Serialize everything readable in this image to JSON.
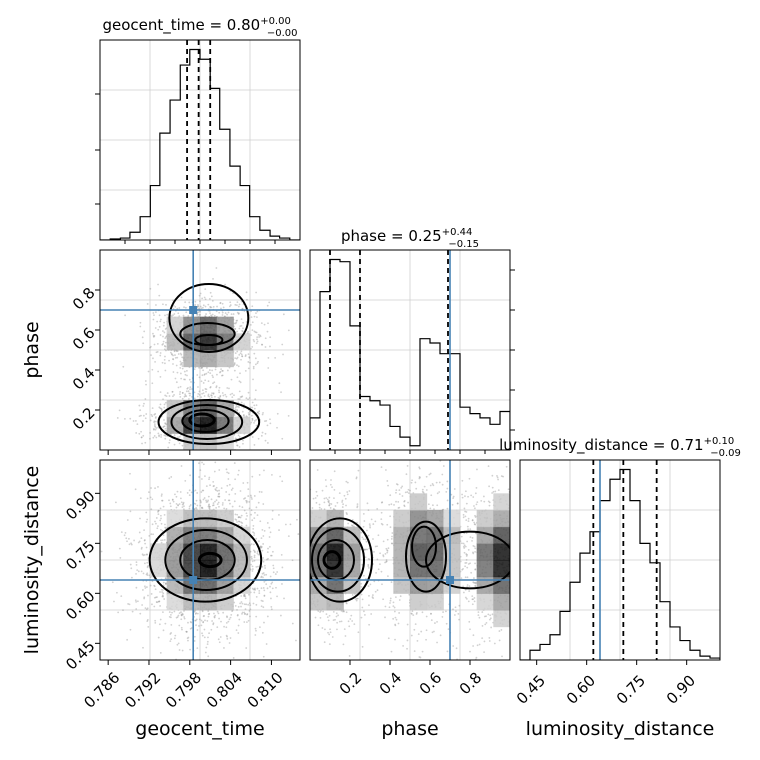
{
  "chart_data": {
    "type": "corner",
    "truth_color": "#4682b4",
    "panels": [
      {
        "id": "diag-geocent",
        "type": "histogram",
        "parameter": "geocent_time",
        "title": {
          "main": "geocent_time = 0.80",
          "sup": "+0.00",
          "sub": "−0.00"
        },
        "xlim": [
          0.7848,
          0.8142
        ],
        "bin_edges": [
          0.7848,
          0.7863,
          0.7878,
          0.7892,
          0.7907,
          0.7922,
          0.7936,
          0.7951,
          0.7966,
          0.798,
          0.7995,
          0.801,
          0.8024,
          0.8039,
          0.8054,
          0.8068,
          0.8083,
          0.8098,
          0.8112,
          0.8127,
          0.8142
        ],
        "counts": [
          0.0,
          0.005,
          0.01,
          0.04,
          0.12,
          0.28,
          0.55,
          0.72,
          0.9,
          0.98,
          0.93,
          0.78,
          0.57,
          0.38,
          0.28,
          0.12,
          0.05,
          0.02,
          0.01,
          0.0
        ],
        "quantiles": [
          0.7976,
          0.7993,
          0.801
        ]
      },
      {
        "id": "diag-phase",
        "type": "histogram",
        "parameter": "phase",
        "title": {
          "main": "phase = 0.25",
          "sup": "+0.44",
          "sub": "−0.15"
        },
        "xlim": [
          0.0,
          1.0
        ],
        "bin_edges": [
          0.0,
          0.05,
          0.1,
          0.15,
          0.2,
          0.25,
          0.3,
          0.35,
          0.4,
          0.45,
          0.5,
          0.55,
          0.6,
          0.65,
          0.7,
          0.75,
          0.8,
          0.85,
          0.9,
          0.95,
          1.0
        ],
        "counts": [
          0.15,
          0.74,
          0.89,
          0.88,
          0.58,
          0.25,
          0.23,
          0.21,
          0.11,
          0.06,
          0.02,
          0.52,
          0.5,
          0.45,
          0.45,
          0.2,
          0.17,
          0.15,
          0.12,
          0.18
        ],
        "quantiles": [
          0.1,
          0.25,
          0.69
        ],
        "truth": 0.7,
        "yticks": [
          0.1,
          0.3,
          0.5,
          0.7,
          0.9
        ]
      },
      {
        "id": "diag-lumdist",
        "type": "histogram",
        "parameter": "luminosity_distance",
        "title": {
          "main": "luminosity_distance = 0.71",
          "sup": "+0.10",
          "sub": "−0.09"
        },
        "xlim": [
          0.4,
          1.0
        ],
        "bin_edges": [
          0.4,
          0.43,
          0.46,
          0.49,
          0.52,
          0.55,
          0.58,
          0.61,
          0.64,
          0.67,
          0.7,
          0.73,
          0.76,
          0.79,
          0.82,
          0.85,
          0.88,
          0.91,
          0.94,
          0.97,
          1.0
        ],
        "counts": [
          0.0,
          0.05,
          0.08,
          0.13,
          0.25,
          0.4,
          0.55,
          0.66,
          0.82,
          0.93,
          0.98,
          0.82,
          0.6,
          0.5,
          0.3,
          0.17,
          0.1,
          0.05,
          0.02,
          0.01
        ],
        "quantiles": [
          0.62,
          0.71,
          0.81
        ],
        "truth": 0.64
      },
      {
        "id": "joint-geo-phase",
        "type": "density",
        "x": "geocent_time",
        "y": "phase",
        "xlim": [
          0.7848,
          0.8142
        ],
        "ylim": [
          0.0,
          1.0
        ],
        "truth": [
          0.7985,
          0.7
        ],
        "modes": [
          {
            "x": 0.8,
            "y": 0.15,
            "sx": 0.0025,
            "sy": 0.05
          },
          {
            "x": 0.8005,
            "y": 0.56,
            "sx": 0.0025,
            "sy": 0.06
          }
        ],
        "contours": [
          {
            "cx": 0.7998,
            "cy": 0.15,
            "rx": 0.0018,
            "ry": 0.03,
            "t": 3
          },
          {
            "cx": 0.8003,
            "cy": 0.145,
            "rx": 0.0034,
            "ry": 0.055,
            "t": 2
          },
          {
            "cx": 0.8005,
            "cy": 0.14,
            "rx": 0.0052,
            "ry": 0.085,
            "t": 2
          },
          {
            "cx": 0.8008,
            "cy": 0.14,
            "rx": 0.0074,
            "ry": 0.11,
            "t": 2
          },
          {
            "cx": 0.8008,
            "cy": 0.55,
            "rx": 0.002,
            "ry": 0.025,
            "t": 2
          },
          {
            "cx": 0.8006,
            "cy": 0.58,
            "rx": 0.004,
            "ry": 0.055,
            "t": 2
          },
          {
            "cx": 0.8008,
            "cy": 0.66,
            "rx": 0.0058,
            "ry": 0.17,
            "t": 2
          }
        ],
        "xticks": [
          0.786,
          0.792,
          0.798,
          0.804,
          0.81
        ],
        "yticks": [
          0.2,
          0.4,
          0.6,
          0.8
        ],
        "ytick_labels": [
          "0.2",
          "0.4",
          "0.6",
          "0.8"
        ]
      },
      {
        "id": "joint-geo-lum",
        "type": "density",
        "x": "geocent_time",
        "y": "luminosity_distance",
        "xlim": [
          0.7848,
          0.8142
        ],
        "ylim": [
          0.4,
          1.0
        ],
        "truth": [
          0.7985,
          0.64
        ],
        "modes": [
          {
            "x": 0.8001,
            "y": 0.7,
            "sx": 0.003,
            "sy": 0.07
          }
        ],
        "contours": [
          {
            "cx": 0.801,
            "cy": 0.7,
            "rx": 0.0016,
            "ry": 0.02,
            "t": 3
          },
          {
            "cx": 0.8006,
            "cy": 0.7,
            "rx": 0.004,
            "ry": 0.06,
            "t": 2
          },
          {
            "cx": 0.8004,
            "cy": 0.7,
            "rx": 0.006,
            "ry": 0.09,
            "t": 2
          },
          {
            "cx": 0.8003,
            "cy": 0.7,
            "rx": 0.0082,
            "ry": 0.125,
            "t": 2
          }
        ],
        "xticks": [
          0.786,
          0.792,
          0.798,
          0.804,
          0.81
        ],
        "xtick_labels": [
          "0.786",
          "0.792",
          "0.798",
          "0.804",
          "0.810"
        ],
        "yticks": [
          0.45,
          0.6,
          0.75,
          0.9
        ],
        "ytick_labels": [
          "0.45",
          "0.60",
          "0.75",
          "0.90"
        ]
      },
      {
        "id": "joint-phase-lum",
        "type": "density",
        "x": "phase",
        "y": "luminosity_distance",
        "xlim": [
          0.0,
          1.0
        ],
        "ylim": [
          0.4,
          1.0
        ],
        "truth": [
          0.7,
          0.64
        ],
        "modes": [
          {
            "x": 0.11,
            "y": 0.7,
            "sx": 0.06,
            "sy": 0.07
          },
          {
            "x": 0.57,
            "y": 0.72,
            "sx": 0.08,
            "sy": 0.08
          },
          {
            "x": 0.95,
            "y": 0.7,
            "sx": 0.06,
            "sy": 0.08
          }
        ],
        "contours": [
          {
            "cx": 0.11,
            "cy": 0.7,
            "rx": 0.04,
            "ry": 0.025,
            "t": 3
          },
          {
            "cx": 0.13,
            "cy": 0.7,
            "rx": 0.09,
            "ry": 0.06,
            "t": 2
          },
          {
            "cx": 0.14,
            "cy": 0.7,
            "rx": 0.13,
            "ry": 0.095,
            "t": 2
          },
          {
            "cx": 0.15,
            "cy": 0.7,
            "rx": 0.16,
            "ry": 0.125,
            "t": 2
          },
          {
            "cx": 0.57,
            "cy": 0.74,
            "rx": 0.06,
            "ry": 0.06,
            "t": 2
          },
          {
            "cx": 0.58,
            "cy": 0.71,
            "rx": 0.1,
            "ry": 0.105,
            "t": 2
          },
          {
            "cx": 0.8,
            "cy": 0.7,
            "rx": 0.22,
            "ry": 0.085,
            "t": 2
          }
        ],
        "xticks": [
          0.2,
          0.4,
          0.6,
          0.8
        ],
        "xtick_labels": [
          "0.2",
          "0.4",
          "0.6",
          "0.8"
        ]
      },
      {
        "id": "diag-lumdist-axis",
        "type": "axis",
        "xticks": [
          0.45,
          0.6,
          0.75,
          0.9
        ],
        "xtick_labels": [
          "0.45",
          "0.60",
          "0.75",
          "0.90"
        ]
      }
    ],
    "axis_labels": {
      "x": [
        "geocent_time",
        "phase",
        "luminosity_distance"
      ],
      "y": [
        "phase",
        "luminosity_distance"
      ]
    },
    "grid": true
  }
}
